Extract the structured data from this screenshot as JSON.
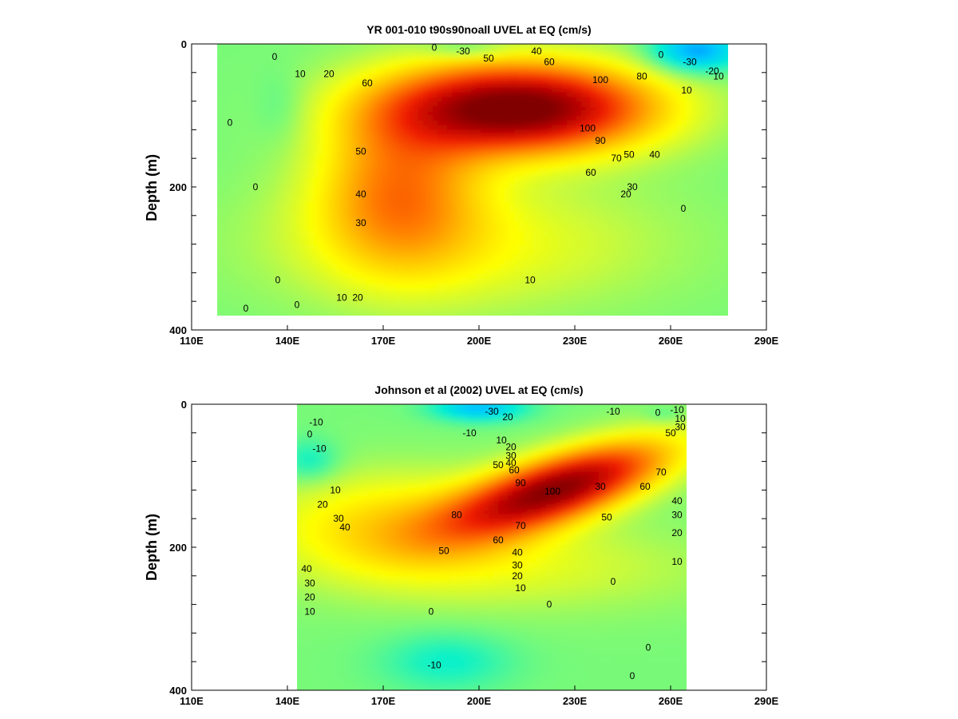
{
  "chart_data": [
    {
      "type": "heatmap",
      "subtype": "filled-contour",
      "title": "YR 001-010 t90s90noall UVEL at EQ (cm/s)",
      "xlabel": "",
      "ylabel": "Depth (m)",
      "xlim": [
        110,
        290
      ],
      "ylim": [
        400,
        0
      ],
      "x_ticks": [
        "110E",
        "140E",
        "170E",
        "200E",
        "230E",
        "260E",
        "290E"
      ],
      "y_ticks": [
        "0",
        "200",
        "400"
      ],
      "units": "cm/s",
      "data_extent": {
        "x": [
          118,
          278
        ],
        "depth": [
          0,
          380
        ]
      },
      "features": [
        {
          "name": "undercurrent core",
          "lon": 210,
          "depth": 90,
          "value": 110
        },
        {
          "name": "surface westward flow",
          "lon": 270,
          "depth": 15,
          "value": -30
        }
      ],
      "contour_labels": [
        {
          "text": "0",
          "lon": 136,
          "depth": 18
        },
        {
          "text": "0",
          "lon": 122,
          "depth": 110
        },
        {
          "text": "0",
          "lon": 130,
          "depth": 200
        },
        {
          "text": "0",
          "lon": 137,
          "depth": 330
        },
        {
          "text": "0",
          "lon": 127,
          "depth": 370
        },
        {
          "text": "0",
          "lon": 143,
          "depth": 365
        },
        {
          "text": "10",
          "lon": 144,
          "depth": 42
        },
        {
          "text": "10",
          "lon": 157,
          "depth": 355
        },
        {
          "text": "10",
          "lon": 216,
          "depth": 330
        },
        {
          "text": "20",
          "lon": 153,
          "depth": 42
        },
        {
          "text": "20",
          "lon": 162,
          "depth": 355
        },
        {
          "text": "30",
          "lon": 163,
          "depth": 250
        },
        {
          "text": "40",
          "lon": 163,
          "depth": 210
        },
        {
          "text": "50",
          "lon": 163,
          "depth": 150
        },
        {
          "text": "60",
          "lon": 165,
          "depth": 55
        },
        {
          "text": "0",
          "lon": 186,
          "depth": 5
        },
        {
          "text": "-30",
          "lon": 195,
          "depth": 10
        },
        {
          "text": "50",
          "lon": 203,
          "depth": 20
        },
        {
          "text": "40",
          "lon": 218,
          "depth": 10
        },
        {
          "text": "60",
          "lon": 222,
          "depth": 25
        },
        {
          "text": "100",
          "lon": 238,
          "depth": 50
        },
        {
          "text": "100",
          "lon": 234,
          "depth": 118
        },
        {
          "text": "90",
          "lon": 238,
          "depth": 135
        },
        {
          "text": "70",
          "lon": 243,
          "depth": 160
        },
        {
          "text": "80",
          "lon": 251,
          "depth": 45
        },
        {
          "text": "50",
          "lon": 247,
          "depth": 155
        },
        {
          "text": "40",
          "lon": 255,
          "depth": 155
        },
        {
          "text": "60",
          "lon": 235,
          "depth": 180
        },
        {
          "text": "30",
          "lon": 248,
          "depth": 200
        },
        {
          "text": "20",
          "lon": 246,
          "depth": 210
        },
        {
          "text": "10",
          "lon": 265,
          "depth": 65
        },
        {
          "text": "0",
          "lon": 257,
          "depth": 15
        },
        {
          "text": "-30",
          "lon": 266,
          "depth": 25
        },
        {
          "text": "-20",
          "lon": 273,
          "depth": 38
        },
        {
          "text": "10",
          "lon": 275,
          "depth": 45
        },
        {
          "text": "0",
          "lon": 264,
          "depth": 230
        }
      ]
    },
    {
      "type": "heatmap",
      "subtype": "filled-contour",
      "title": "Johnson et al (2002) UVEL at EQ (cm/s)",
      "xlabel": "",
      "ylabel": "Depth (m)",
      "xlim": [
        110,
        290
      ],
      "ylim": [
        400,
        0
      ],
      "x_ticks": [
        "110E",
        "140E",
        "170E",
        "200E",
        "230E",
        "260E",
        "290E"
      ],
      "y_ticks": [
        "0",
        "200",
        "400"
      ],
      "units": "cm/s",
      "data_extent": {
        "x": [
          143,
          265
        ],
        "depth": [
          0,
          400
        ]
      },
      "features": [
        {
          "name": "undercurrent core",
          "lon": 222,
          "depth": 110,
          "value": 100
        },
        {
          "name": "surface westward flow",
          "lon": 200,
          "depth": 10,
          "value": -30
        }
      ],
      "contour_labels": [
        {
          "text": "-10",
          "lon": 149,
          "depth": 25
        },
        {
          "text": "0",
          "lon": 147,
          "depth": 42
        },
        {
          "text": "-10",
          "lon": 150,
          "depth": 62
        },
        {
          "text": "10",
          "lon": 155,
          "depth": 120
        },
        {
          "text": "20",
          "lon": 151,
          "depth": 140
        },
        {
          "text": "30",
          "lon": 156,
          "depth": 160
        },
        {
          "text": "40",
          "lon": 158,
          "depth": 172
        },
        {
          "text": "-30",
          "lon": 204,
          "depth": 10
        },
        {
          "text": "20",
          "lon": 209,
          "depth": 18
        },
        {
          "text": "-10",
          "lon": 197,
          "depth": 40
        },
        {
          "text": "10",
          "lon": 207,
          "depth": 50
        },
        {
          "text": "20",
          "lon": 210,
          "depth": 60
        },
        {
          "text": "30",
          "lon": 210,
          "depth": 72
        },
        {
          "text": "40",
          "lon": 210,
          "depth": 82
        },
        {
          "text": "50",
          "lon": 206,
          "depth": 85
        },
        {
          "text": "60",
          "lon": 211,
          "depth": 92
        },
        {
          "text": "90",
          "lon": 213,
          "depth": 110
        },
        {
          "text": "100",
          "lon": 223,
          "depth": 122
        },
        {
          "text": "80",
          "lon": 193,
          "depth": 155
        },
        {
          "text": "70",
          "lon": 213,
          "depth": 170
        },
        {
          "text": "60",
          "lon": 206,
          "depth": 190
        },
        {
          "text": "50",
          "lon": 189,
          "depth": 205
        },
        {
          "text": "40",
          "lon": 212,
          "depth": 207
        },
        {
          "text": "30",
          "lon": 212,
          "depth": 225
        },
        {
          "text": "20",
          "lon": 212,
          "depth": 240
        },
        {
          "text": "10",
          "lon": 213,
          "depth": 257
        },
        {
          "text": "30",
          "lon": 238,
          "depth": 115
        },
        {
          "text": "60",
          "lon": 252,
          "depth": 115
        },
        {
          "text": "50",
          "lon": 240,
          "depth": 158
        },
        {
          "text": "70",
          "lon": 257,
          "depth": 95
        },
        {
          "text": "40",
          "lon": 262,
          "depth": 135
        },
        {
          "text": "30",
          "lon": 262,
          "depth": 155
        },
        {
          "text": "20",
          "lon": 262,
          "depth": 180
        },
        {
          "text": "10",
          "lon": 262,
          "depth": 220
        },
        {
          "text": "-10",
          "lon": 242,
          "depth": 10
        },
        {
          "text": "0",
          "lon": 256,
          "depth": 12
        },
        {
          "text": "-10",
          "lon": 262,
          "depth": 8
        },
        {
          "text": "10",
          "lon": 263,
          "depth": 20
        },
        {
          "text": "30",
          "lon": 263,
          "depth": 32
        },
        {
          "text": "50",
          "lon": 260,
          "depth": 40
        },
        {
          "text": "0",
          "lon": 242,
          "depth": 248
        },
        {
          "text": "0",
          "lon": 222,
          "depth": 280
        },
        {
          "text": "0",
          "lon": 185,
          "depth": 290
        },
        {
          "text": "10",
          "lon": 147,
          "depth": 290
        },
        {
          "text": "20",
          "lon": 147,
          "depth": 270
        },
        {
          "text": "30",
          "lon": 147,
          "depth": 250
        },
        {
          "text": "40",
          "lon": 146,
          "depth": 230
        },
        {
          "text": "-10",
          "lon": 186,
          "depth": 365
        },
        {
          "text": "0",
          "lon": 253,
          "depth": 340
        },
        {
          "text": "0",
          "lon": 248,
          "depth": 380
        }
      ]
    }
  ]
}
